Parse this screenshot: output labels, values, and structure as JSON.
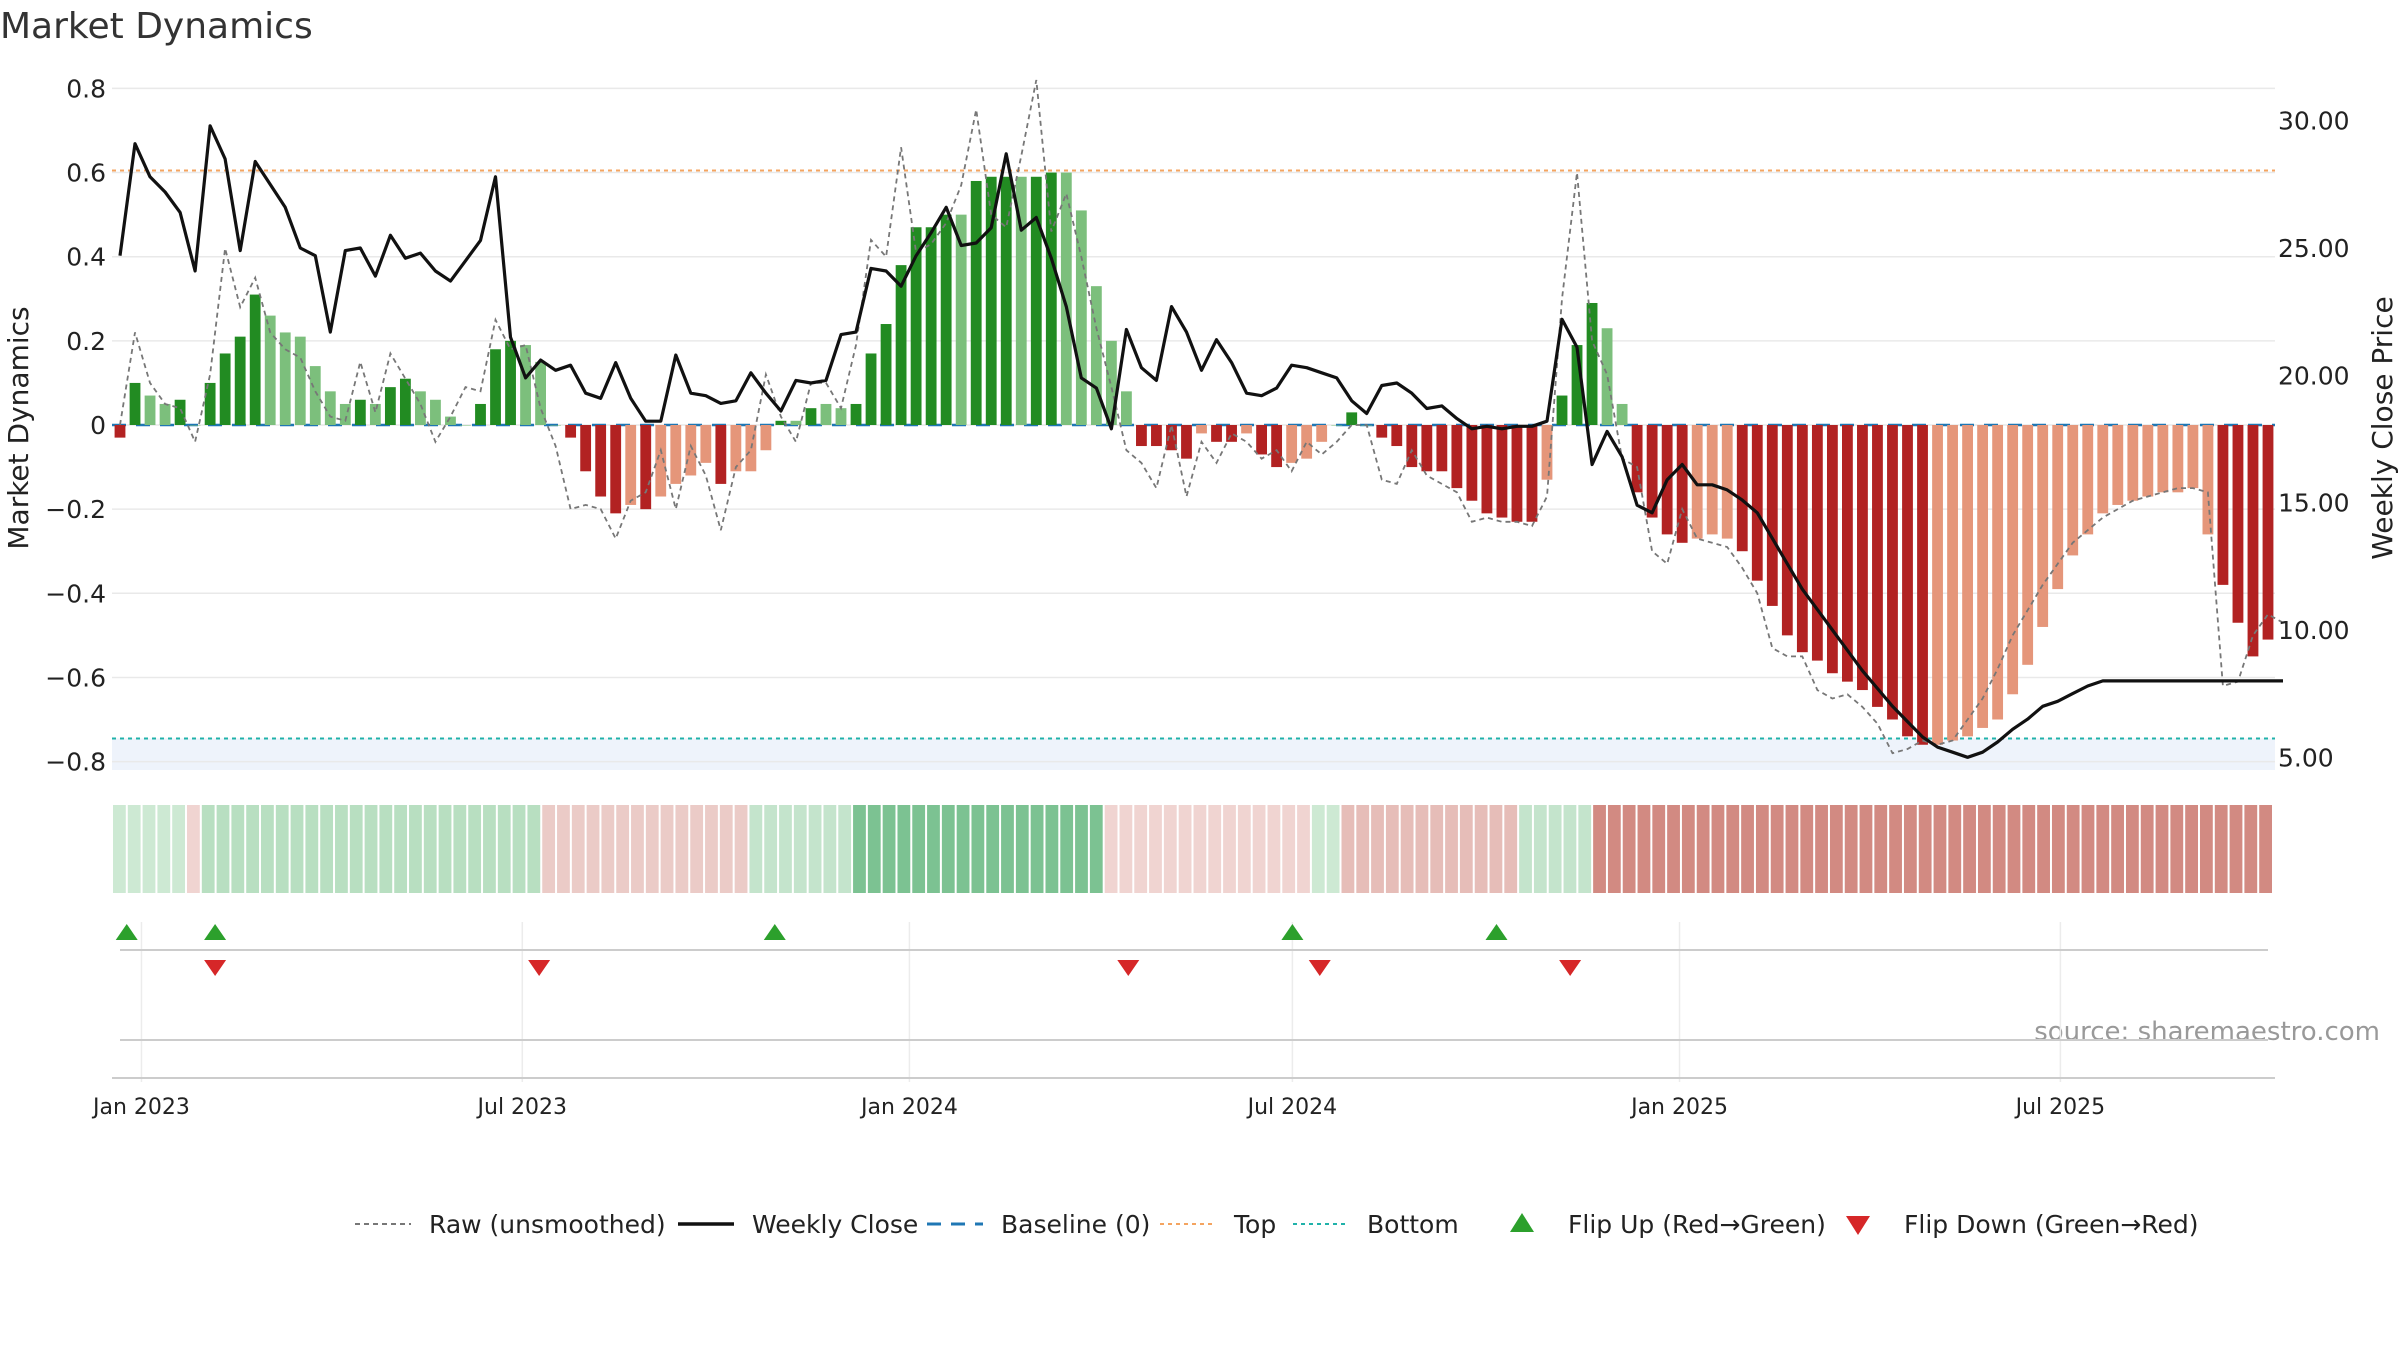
{
  "chart_data": {
    "title": "Market Dynamics",
    "type": "bar",
    "x_axis": {
      "ticks": [
        "Jan 2023",
        "Jul 2023",
        "Jan 2024",
        "Jul 2024",
        "Jan 2025",
        "Jul 2025"
      ],
      "tick_dates": [
        "2023-01-01",
        "2023-07-01",
        "2024-01-01",
        "2024-07-01",
        "2025-01-01",
        "2025-07-01"
      ],
      "range": [
        "2022-12-18",
        "2025-10-11"
      ]
    },
    "y_left": {
      "label": "Market Dynamics",
      "range": [
        -0.82,
        0.82
      ],
      "ticks": [
        "0.8",
        "0.6",
        "0.4",
        "0.2",
        "0",
        "−0.2",
        "−0.4",
        "−0.6",
        "−0.8"
      ],
      "tick_values": [
        0.8,
        0.6,
        0.4,
        0.2,
        0,
        -0.2,
        -0.4,
        -0.6,
        -0.8
      ]
    },
    "y_right": {
      "label": "Weekly Close Price",
      "range": [
        4.5,
        31.6
      ],
      "ticks": [
        "30.00",
        "25.00",
        "20.00",
        "15.00",
        "10.00",
        "5.00"
      ],
      "tick_values": [
        30,
        25,
        20,
        15,
        10,
        5
      ]
    },
    "reference_lines": {
      "top": 0.605,
      "bottom": -0.745,
      "baseline": 0
    },
    "start_date": "2022-12-18",
    "frequency": "weekly",
    "bar_values": [
      -0.03,
      0.1,
      0.07,
      0.05,
      0.06,
      0.0,
      0.1,
      0.17,
      0.21,
      0.31,
      0.26,
      0.22,
      0.21,
      0.14,
      0.08,
      0.05,
      0.06,
      0.05,
      0.09,
      0.11,
      0.08,
      0.06,
      0.02,
      0.0,
      0.05,
      0.18,
      0.2,
      0.19,
      0.15,
      0.0,
      -0.03,
      -0.11,
      -0.17,
      -0.21,
      -0.19,
      -0.2,
      -0.17,
      -0.14,
      -0.12,
      -0.09,
      -0.14,
      -0.11,
      -0.11,
      -0.06,
      0.01,
      0.01,
      0.04,
      0.05,
      0.04,
      0.05,
      0.17,
      0.24,
      0.38,
      0.47,
      0.47,
      0.5,
      0.5,
      0.58,
      0.59,
      0.59,
      0.59,
      0.59,
      0.6,
      0.6,
      0.51,
      0.33,
      0.2,
      0.08,
      -0.05,
      -0.05,
      -0.06,
      -0.08,
      -0.02,
      -0.04,
      -0.04,
      -0.02,
      -0.07,
      -0.1,
      -0.09,
      -0.08,
      -0.04,
      0.0,
      0.03,
      0.0,
      -0.03,
      -0.05,
      -0.1,
      -0.11,
      -0.11,
      -0.15,
      -0.18,
      -0.21,
      -0.22,
      -0.23,
      -0.23,
      -0.13,
      0.07,
      0.19,
      0.29,
      0.23,
      0.05,
      -0.16,
      -0.22,
      -0.26,
      -0.28,
      -0.27,
      -0.26,
      -0.27,
      -0.3,
      -0.37,
      -0.43,
      -0.5,
      -0.54,
      -0.56,
      -0.59,
      -0.61,
      -0.63,
      -0.67,
      -0.7,
      -0.74,
      -0.76,
      -0.76,
      -0.75,
      -0.74,
      -0.72,
      -0.7,
      -0.64,
      -0.57,
      -0.48,
      -0.39,
      -0.31,
      -0.26,
      -0.21,
      -0.19,
      -0.18,
      -0.17,
      -0.16,
      -0.16,
      -0.15,
      -0.26,
      -0.38,
      -0.47,
      -0.55,
      -0.51
    ],
    "bar_states": [
      "strong-neg",
      "strong-pos",
      "weak-pos",
      "weak-pos",
      "strong-pos",
      "zero",
      "strong-pos",
      "strong-pos",
      "strong-pos",
      "strong-pos",
      "weak-pos",
      "weak-pos",
      "weak-pos",
      "weak-pos",
      "weak-pos",
      "weak-pos",
      "strong-pos",
      "weak-pos",
      "strong-pos",
      "strong-pos",
      "weak-pos",
      "weak-pos",
      "weak-pos",
      "zero",
      "strong-pos",
      "strong-pos",
      "strong-pos",
      "weak-pos",
      "weak-pos",
      "zero",
      "strong-neg",
      "strong-neg",
      "strong-neg",
      "strong-neg",
      "weak-neg",
      "strong-neg",
      "weak-neg",
      "weak-neg",
      "weak-neg",
      "weak-neg",
      "strong-neg",
      "weak-neg",
      "weak-neg",
      "weak-neg",
      "strong-pos",
      "weak-pos",
      "strong-pos",
      "weak-pos",
      "weak-pos",
      "strong-pos",
      "strong-pos",
      "strong-pos",
      "strong-pos",
      "strong-pos",
      "strong-pos",
      "strong-pos",
      "weak-pos",
      "strong-pos",
      "strong-pos",
      "strong-pos",
      "weak-pos",
      "strong-pos",
      "strong-pos",
      "weak-pos",
      "weak-pos",
      "weak-pos",
      "weak-pos",
      "weak-pos",
      "strong-neg",
      "strong-neg",
      "strong-neg",
      "strong-neg",
      "weak-neg",
      "strong-neg",
      "strong-neg",
      "weak-neg",
      "strong-neg",
      "strong-neg",
      "weak-neg",
      "weak-neg",
      "weak-neg",
      "zero",
      "strong-pos",
      "zero",
      "strong-neg",
      "strong-neg",
      "strong-neg",
      "strong-neg",
      "strong-neg",
      "strong-neg",
      "strong-neg",
      "strong-neg",
      "strong-neg",
      "strong-neg",
      "strong-neg",
      "weak-neg",
      "strong-pos",
      "strong-pos",
      "strong-pos",
      "weak-pos",
      "weak-pos",
      "strong-neg",
      "strong-neg",
      "strong-neg",
      "strong-neg",
      "weak-neg",
      "weak-neg",
      "weak-neg",
      "strong-neg",
      "strong-neg",
      "strong-neg",
      "strong-neg",
      "strong-neg",
      "strong-neg",
      "strong-neg",
      "strong-neg",
      "strong-neg",
      "strong-neg",
      "strong-neg",
      "strong-neg",
      "strong-neg",
      "weak-neg",
      "weak-neg",
      "weak-neg",
      "weak-neg",
      "weak-neg",
      "weak-neg",
      "weak-neg",
      "weak-neg",
      "weak-neg",
      "weak-neg",
      "weak-neg",
      "weak-neg",
      "weak-neg",
      "weak-neg",
      "weak-neg",
      "weak-neg",
      "weak-neg",
      "weak-neg",
      "weak-neg",
      "strong-neg",
      "strong-neg",
      "strong-neg",
      "strong-neg",
      "weak-neg"
    ],
    "raw_values": [
      0.0,
      0.22,
      0.1,
      0.05,
      0.04,
      -0.04,
      0.12,
      0.42,
      0.28,
      0.35,
      0.22,
      0.18,
      0.16,
      0.08,
      0.02,
      0.01,
      0.15,
      0.03,
      0.17,
      0.11,
      0.05,
      -0.04,
      0.02,
      0.09,
      0.08,
      0.25,
      0.18,
      0.19,
      0.04,
      -0.05,
      -0.2,
      -0.19,
      -0.2,
      -0.27,
      -0.18,
      -0.16,
      -0.06,
      -0.2,
      -0.05,
      -0.12,
      -0.25,
      -0.1,
      -0.06,
      0.12,
      0.02,
      -0.04,
      0.1,
      0.1,
      0.04,
      0.19,
      0.44,
      0.4,
      0.66,
      0.41,
      0.43,
      0.48,
      0.57,
      0.75,
      0.5,
      0.47,
      0.64,
      0.82,
      0.46,
      0.55,
      0.4,
      0.23,
      0.09,
      -0.06,
      -0.09,
      -0.15,
      0.0,
      -0.17,
      -0.04,
      -0.09,
      -0.02,
      -0.04,
      -0.08,
      -0.06,
      -0.11,
      -0.04,
      -0.07,
      -0.04,
      0.0,
      0.0,
      -0.13,
      -0.14,
      -0.06,
      -0.12,
      -0.14,
      -0.16,
      -0.23,
      -0.22,
      -0.23,
      -0.23,
      -0.24,
      -0.17,
      0.3,
      0.6,
      0.2,
      0.12,
      -0.08,
      -0.1,
      -0.3,
      -0.33,
      -0.2,
      -0.27,
      -0.28,
      -0.29,
      -0.34,
      -0.4,
      -0.53,
      -0.55,
      -0.55,
      -0.63,
      -0.65,
      -0.64,
      -0.67,
      -0.71,
      -0.78,
      -0.77,
      -0.75,
      -0.76,
      -0.75,
      -0.7,
      -0.65,
      -0.58,
      -0.5,
      -0.44,
      -0.38,
      -0.33,
      -0.28,
      -0.25,
      -0.22,
      -0.2,
      -0.18,
      -0.17,
      -0.16,
      -0.15,
      -0.15,
      -0.16,
      -0.62,
      -0.61,
      -0.5,
      -0.45,
      -0.47
    ],
    "weekly_close": [
      24.7,
      29.1,
      27.8,
      27.2,
      26.4,
      24.1,
      29.8,
      28.5,
      24.9,
      28.4,
      27.5,
      26.6,
      25.0,
      24.7,
      21.7,
      24.9,
      25.0,
      23.9,
      25.5,
      24.6,
      24.8,
      24.1,
      23.7,
      24.5,
      25.3,
      27.8,
      21.5,
      19.9,
      20.6,
      20.2,
      20.4,
      19.3,
      19.1,
      20.5,
      19.1,
      18.2,
      18.2,
      20.8,
      19.3,
      19.2,
      18.9,
      19.0,
      20.1,
      19.3,
      18.6,
      19.8,
      19.7,
      19.8,
      21.6,
      21.7,
      24.2,
      24.1,
      23.5,
      24.7,
      25.6,
      26.6,
      25.1,
      25.2,
      25.8,
      28.7,
      25.7,
      26.2,
      24.6,
      22.7,
      19.9,
      19.5,
      17.9,
      21.8,
      20.3,
      19.8,
      22.7,
      21.7,
      20.2,
      21.4,
      20.5,
      19.3,
      19.2,
      19.5,
      20.4,
      20.3,
      20.1,
      19.9,
      19.0,
      18.5,
      19.6,
      19.7,
      19.3,
      18.7,
      18.8,
      18.3,
      17.9,
      18.0,
      17.9,
      18.0,
      18.0,
      18.2,
      22.2,
      21.1,
      16.5,
      17.8,
      16.8,
      14.9,
      14.6,
      15.9,
      16.5,
      15.7,
      15.7,
      15.5,
      15.1,
      14.6,
      13.6,
      12.6,
      11.6,
      10.8,
      10.0,
      9.2,
      8.4,
      7.7,
      7.0,
      6.4,
      5.8,
      5.4,
      5.2,
      5.0,
      5.2,
      5.6,
      6.1,
      6.5,
      7.0,
      7.2,
      7.5,
      7.8,
      8.0,
      8.0,
      8.0,
      8.0,
      8.0,
      8.0,
      8.0,
      8.0,
      8.0,
      8.0,
      8.0,
      8.0,
      8.0
    ],
    "regime_strip": {
      "count": 146,
      "segments": [
        {
          "from": 0,
          "to": 5,
          "color": "#cde9d3"
        },
        {
          "from": 5,
          "to": 6,
          "color": "#f0d4d1"
        },
        {
          "from": 6,
          "to": 29,
          "color": "#b8dfc1"
        },
        {
          "from": 29,
          "to": 43,
          "color": "#ebcbc7"
        },
        {
          "from": 43,
          "to": 50,
          "color": "#c4e4cc"
        },
        {
          "from": 50,
          "to": 67,
          "color": "#7cc292"
        },
        {
          "from": 67,
          "to": 81,
          "color": "#f0d4d1"
        },
        {
          "from": 81,
          "to": 83,
          "color": "#cde9d3"
        },
        {
          "from": 83,
          "to": 95,
          "color": "#e6bdb8"
        },
        {
          "from": 95,
          "to": 100,
          "color": "#c4e4cc"
        },
        {
          "from": 100,
          "to": 146,
          "color": "#d28a82"
        }
      ]
    },
    "flip_up_dates": [
      "2022-12-25",
      "2023-02-05",
      "2023-10-29",
      "2024-07-01",
      "2024-10-06"
    ],
    "flip_down_dates": [
      "2023-02-05",
      "2023-07-09",
      "2024-04-14",
      "2024-07-14",
      "2024-11-10"
    ],
    "colors": {
      "strong_pos": "#228b22",
      "weak_pos": "#7cbf7c",
      "strong_neg": "#b22222",
      "weak_neg": "#e5967a",
      "top_line": "#f4a460",
      "bottom_line": "#20b2aa",
      "baseline": "#1f77b4",
      "raw_line": "#777777",
      "close_line": "#111111",
      "flip_up": "#2ca02c",
      "flip_down": "#d62728"
    },
    "legend": {
      "entries": [
        {
          "label": "Raw (unsmoothed)",
          "icon": "dashed-gray-line-icon"
        },
        {
          "label": "Weekly Close",
          "icon": "solid-black-line-icon"
        },
        {
          "label": "Baseline (0)",
          "icon": "dashed-blue-line-icon"
        },
        {
          "label": "Top",
          "icon": "dotted-orange-line-icon"
        },
        {
          "label": "Bottom",
          "icon": "dotted-teal-line-icon"
        },
        {
          "label": "Flip Up (Red→Green)",
          "icon": "green-triangle-up-icon"
        },
        {
          "label": "Flip Down (Green→Red)",
          "icon": "red-triangle-down-icon"
        }
      ],
      "placement": "bottom-center"
    },
    "source_note": "source: sharemaestro.com",
    "grid": true
  }
}
